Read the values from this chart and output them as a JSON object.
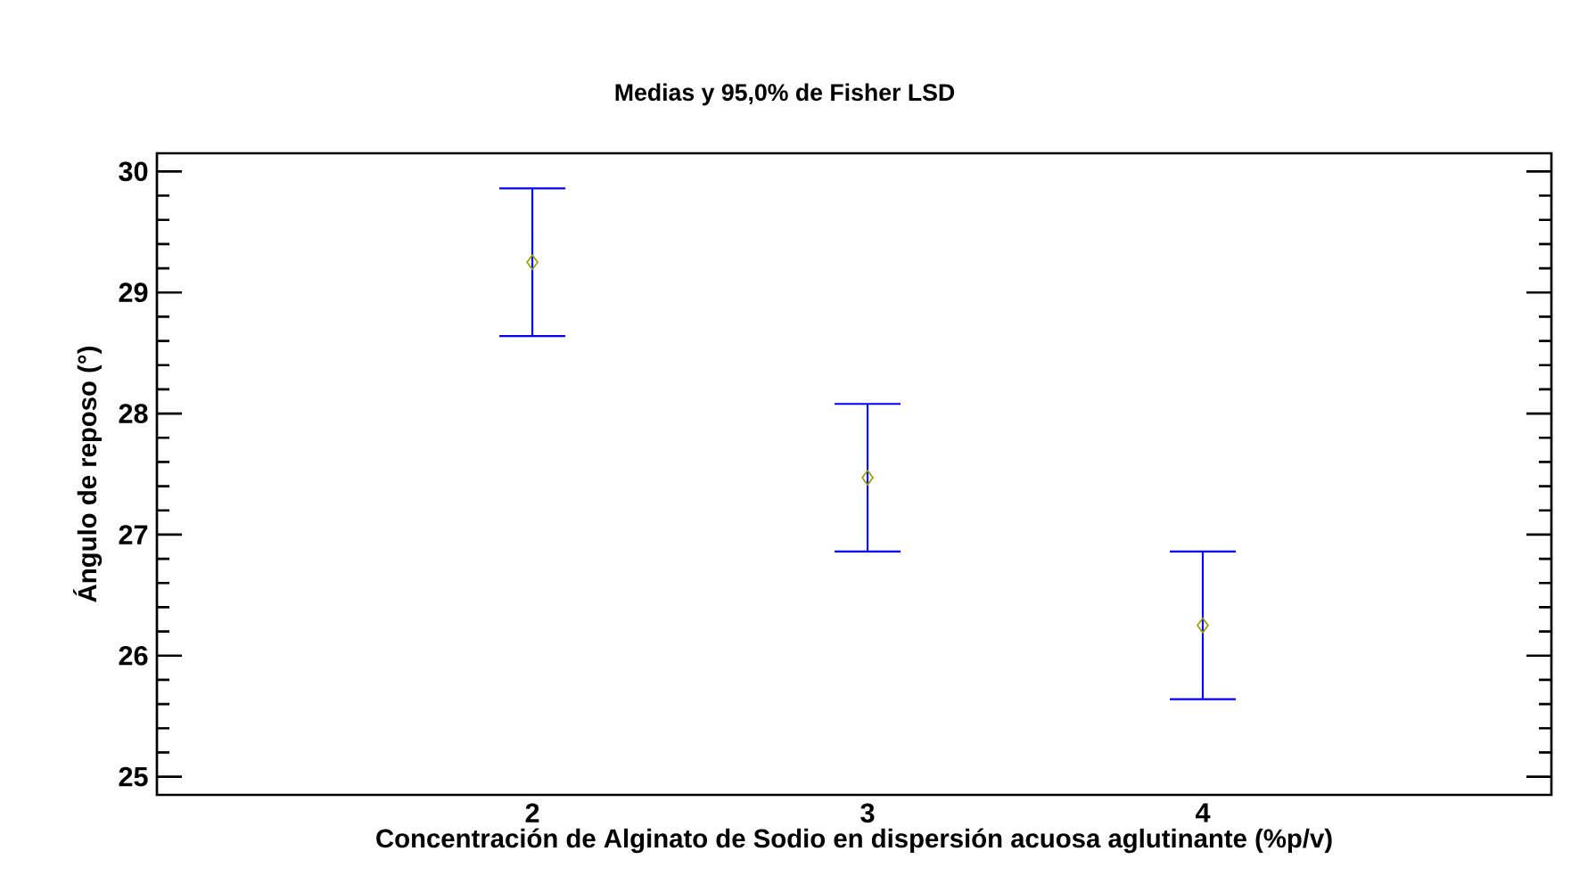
{
  "chart_data": {
    "type": "scatter",
    "title": "Medias y 95,0% de Fisher LSD",
    "xlabel": "Concentración de Alginato de Sodio en dispersión acuosa aglutinante  (%p/v)",
    "ylabel": "Ángulo de reposo  (°)",
    "x": [
      2,
      3,
      4
    ],
    "values": [
      29.25,
      27.47,
      26.25
    ],
    "errors": [
      0.61,
      0.61,
      0.61
    ],
    "color": "#999900",
    "marker": "diamond",
    "xlim": [
      0.88,
      5.04
    ],
    "xticks": [
      2,
      3,
      4
    ],
    "ylim": [
      24.85,
      30.15
    ],
    "yticks": [
      25,
      26,
      27,
      28,
      29,
      30
    ]
  }
}
